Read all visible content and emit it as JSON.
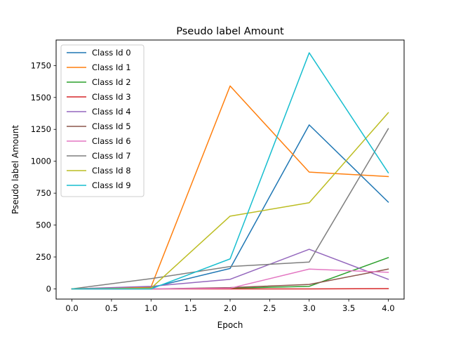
{
  "chart_data": {
    "type": "line",
    "title": "Pseudo label Amount",
    "xlabel": "Epoch",
    "ylabel": "Pseudo label Amount",
    "x": [
      0,
      1,
      2,
      3,
      4
    ],
    "xlim": [
      -0.2,
      4.2
    ],
    "ylim": [
      -80,
      1950
    ],
    "xticks": [
      0.0,
      0.5,
      1.0,
      1.5,
      2.0,
      2.5,
      3.0,
      3.5,
      4.0
    ],
    "xtick_labels": [
      "0.0",
      "0.5",
      "1.0",
      "1.5",
      "2.0",
      "2.5",
      "3.0",
      "3.5",
      "4.0"
    ],
    "yticks": [
      0,
      250,
      500,
      750,
      1000,
      1250,
      1500,
      1750
    ],
    "ytick_labels": [
      "0",
      "250",
      "500",
      "750",
      "1000",
      "1250",
      "1500",
      "1750"
    ],
    "grid": false,
    "legend_position": "top-left",
    "series": [
      {
        "name": "Class Id 0",
        "color": "#1f77b4",
        "values": [
          0,
          10,
          160,
          1285,
          680
        ]
      },
      {
        "name": "Class Id 1",
        "color": "#ff7f0e",
        "values": [
          0,
          15,
          1590,
          915,
          880
        ]
      },
      {
        "name": "Class Id 2",
        "color": "#2ca02c",
        "values": [
          0,
          0,
          5,
          20,
          245
        ]
      },
      {
        "name": "Class Id 3",
        "color": "#d62728",
        "values": [
          0,
          0,
          0,
          0,
          2
        ]
      },
      {
        "name": "Class Id 4",
        "color": "#9467bd",
        "values": [
          0,
          20,
          75,
          310,
          75
        ]
      },
      {
        "name": "Class Id 5",
        "color": "#8c564b",
        "values": [
          0,
          0,
          10,
          35,
          155
        ]
      },
      {
        "name": "Class Id 6",
        "color": "#e377c2",
        "values": [
          0,
          0,
          5,
          155,
          130
        ]
      },
      {
        "name": "Class Id 7",
        "color": "#7f7f7f",
        "values": [
          0,
          80,
          175,
          210,
          1255
        ]
      },
      {
        "name": "Class Id 8",
        "color": "#bcbd22",
        "values": [
          0,
          5,
          570,
          675,
          1380
        ]
      },
      {
        "name": "Class Id 9",
        "color": "#17becf",
        "values": [
          0,
          0,
          235,
          1850,
          910
        ]
      }
    ]
  }
}
